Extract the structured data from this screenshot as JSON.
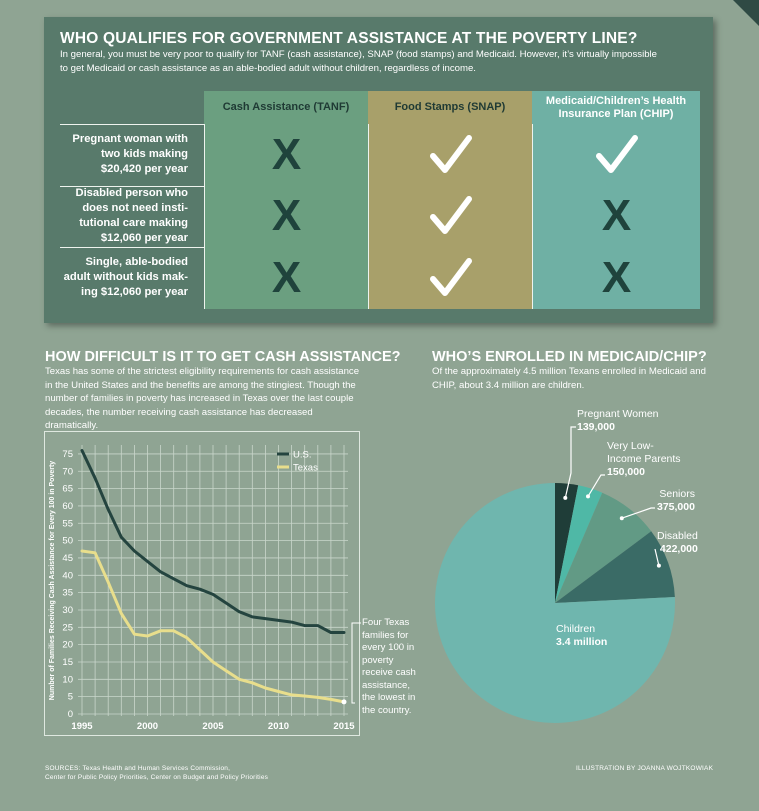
{
  "top": {
    "title": "WHO QUALIFIES FOR GOVERNMENT ASSISTANCE AT THE POVERTY LINE?",
    "intro": "In general, you must be very poor to qualify for TANF (cash assistance), SNAP (food stamps) and Medicaid. However, it’s virtually impossible to get Medicaid or cash assistance as an able-bodied adult without children, regardless of income.",
    "columns": [
      "Cash Assistance (TANF)",
      "Food Stamps (SNAP)",
      "Medicaid/Children’s Health Insurance Plan (CHIP)"
    ],
    "column_colors": [
      "#6b9f80",
      "#a8a06a",
      "#6fb0a4"
    ],
    "rows": [
      {
        "label": "Pregnant woman with two kids making $20,420 per year",
        "marks": [
          "x",
          "check",
          "check"
        ]
      },
      {
        "label": "Disabled person who does not need insti-tutional care making $12,060 per year",
        "marks": [
          "x",
          "check",
          "x"
        ]
      },
      {
        "label": "Single, able-bodied adult without kids mak-ing $12,060 per year",
        "marks": [
          "x",
          "check",
          "x"
        ]
      }
    ],
    "x_glyph": "X"
  },
  "cash": {
    "title": "HOW DIFFICULT IS IT TO GET CASH ASSISTANCE?",
    "text": "Texas has some of the strictest eligibility requirements for cash assistance in the United States and the benefits are among the stingiest. Though the number of families in poverty has increased in Texas over the last couple decades, the number receiving cash assistance has decreased dramatically.",
    "annotation": "Four Texas families for every 100 in poverty receive cash assistance, the lowest in the country."
  },
  "medicaid": {
    "title": "WHO’S ENROLLED IN MEDICAID/CHIP?",
    "text": "Of the approximately 4.5 million Texans enrolled in Medicaid and CHIP, about 3.4 million are children."
  },
  "footer": {
    "sources": "SOURCES: Texas Health and Human Services Commission,",
    "sources_line2": "Center for Public Policy Priorities, Center on Budget and Policy Priorities",
    "credit": "ILLUSTRATION BY JOANNA WOJTKOWIAK"
  },
  "chart_data": [
    {
      "type": "line",
      "ylabel": "Number of Families Receiving Cash Assistance for Every 100 in Poverty",
      "xlabel": "",
      "xlim": [
        1995,
        2015
      ],
      "ylim": [
        0,
        77
      ],
      "x_ticks": [
        1995,
        2000,
        2005,
        2010,
        2015
      ],
      "y_ticks": [
        0,
        5,
        10,
        15,
        20,
        25,
        30,
        35,
        40,
        45,
        50,
        55,
        60,
        65,
        70,
        75
      ],
      "grid": true,
      "legend": "top-right",
      "series": [
        {
          "name": "U.S.",
          "color": "#24443f",
          "x": [
            1995,
            1996,
            1997,
            1998,
            1999,
            2000,
            2001,
            2002,
            2003,
            2004,
            2005,
            2006,
            2007,
            2008,
            2009,
            2010,
            2011,
            2012,
            2013,
            2014,
            2015
          ],
          "values": [
            76,
            68,
            59,
            51,
            47,
            44,
            41,
            39,
            37,
            36,
            34.5,
            32,
            29.5,
            28,
            27.5,
            27,
            26.5,
            25.5,
            25.5,
            23.5,
            23.5
          ]
        },
        {
          "name": "Texas",
          "color": "#e8de8c",
          "x": [
            1995,
            1996,
            1997,
            1998,
            1999,
            2000,
            2001,
            2002,
            2003,
            2004,
            2005,
            2006,
            2007,
            2008,
            2009,
            2010,
            2011,
            2012,
            2013,
            2014,
            2015
          ],
          "values": [
            47,
            46.5,
            38,
            29,
            23,
            22.5,
            24,
            24,
            22,
            18.5,
            15,
            12.5,
            10,
            9,
            7.5,
            6.5,
            5.5,
            5.2,
            4.8,
            4.2,
            3.5
          ]
        }
      ]
    },
    {
      "type": "pie",
      "title": "",
      "slices": [
        {
          "label": "Pregnant Women",
          "display": "139,000",
          "value": 139000,
          "color": "#1f3d38"
        },
        {
          "label": "Very Low-Income Parents",
          "label_lines": [
            "Very Low-",
            "Income Parents"
          ],
          "display": "150,000",
          "value": 150000,
          "color": "#4fb8a6"
        },
        {
          "label": "Seniors",
          "display": "375,000",
          "value": 375000,
          "color": "#629a85"
        },
        {
          "label": "Disabled",
          "display": "422,000",
          "value": 422000,
          "color": "#3a6b66"
        },
        {
          "label": "Children",
          "display": "3.4 million",
          "value": 3400000,
          "color": "#6fb6ae"
        }
      ]
    }
  ]
}
